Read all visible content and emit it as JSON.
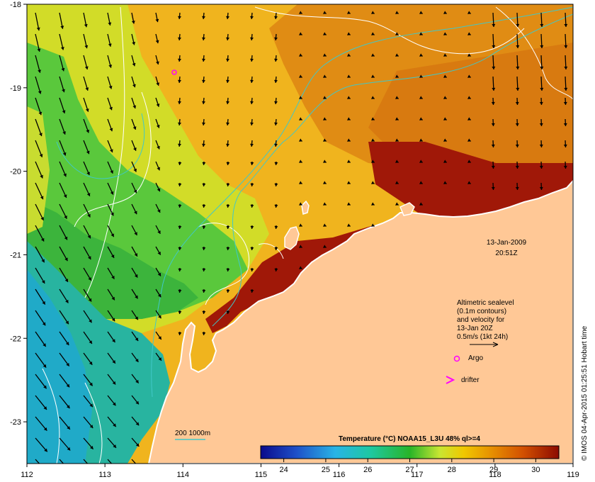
{
  "map": {
    "date": "13-Jan-2009",
    "time": "20:51Z",
    "lon_ticks": [
      "112",
      "113",
      "114",
      "115",
      "116",
      "117",
      "118",
      "119"
    ],
    "lat_ticks": [
      "-18",
      "-19",
      "-20",
      "-21",
      "-22",
      "-23"
    ],
    "lon_range": [
      112,
      119
    ],
    "lat_range": [
      -23.5,
      -18
    ]
  },
  "legend": {
    "sealevel_lines": [
      "Altimetric sealevel",
      "(0.1m contours)",
      "and velocity for",
      "13-Jan 20Z",
      "0.5m/s (1kt 24h)"
    ],
    "argo_label": "Argo",
    "drifter_label": "drifter",
    "isobath_label": "200  1000m"
  },
  "colorbar": {
    "title": "Temperature (°C) NOAA15_L3U 48% ql>=4",
    "ticks": [
      "24",
      "25",
      "26",
      "27",
      "28",
      "29",
      "30"
    ]
  },
  "credit": "© IMOS 04-Apr-2015 01:25:51 Hobart time",
  "colors": {
    "land": "#ffc896",
    "coast": "#ffffff",
    "contour": "#ffffff",
    "isobath": "#40c8c8",
    "argo": "#ff00ff",
    "arrow": "#000000"
  }
}
